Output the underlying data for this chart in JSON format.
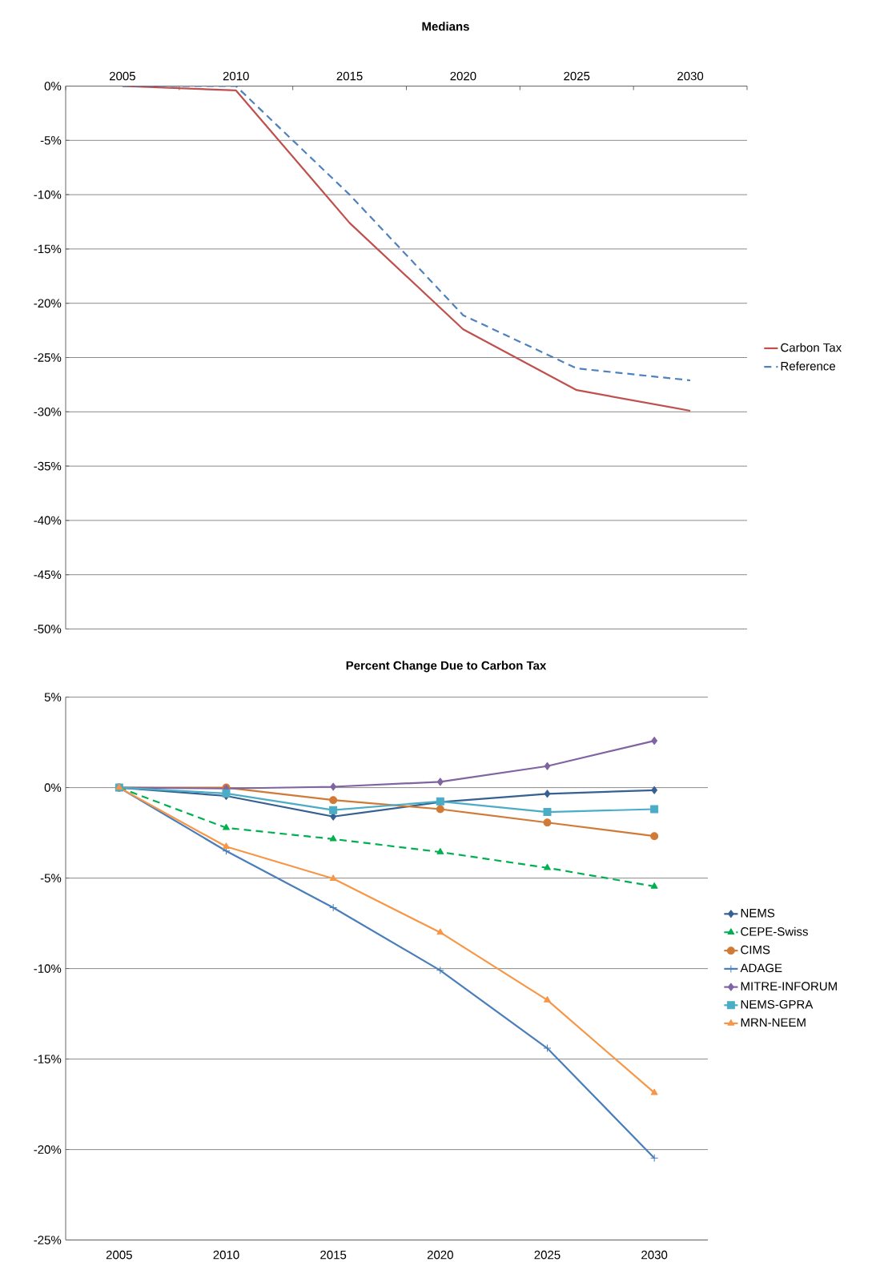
{
  "chart_data": [
    {
      "type": "line",
      "title": "Medians",
      "categories": [
        "2005",
        "2010",
        "2015",
        "2020",
        "2025",
        "2030"
      ],
      "series": [
        {
          "name": "Carbon Tax",
          "color": "#c0504d",
          "line_style": "solid",
          "values": [
            0,
            -0.4,
            -12.6,
            -22.4,
            -28.0,
            -29.9
          ]
        },
        {
          "name": "Reference",
          "color": "#4f81bd",
          "line_style": "dashed",
          "values": [
            0,
            0,
            -10.0,
            -21.1,
            -26.0,
            -27.1
          ]
        }
      ],
      "ylim": [
        -50,
        0
      ],
      "yticks": [
        {
          "value": 0,
          "label": "0%"
        },
        {
          "value": -5,
          "label": "-5%"
        },
        {
          "value": -10,
          "label": "-10%"
        },
        {
          "value": -15,
          "label": "-15%"
        },
        {
          "value": -20,
          "label": "-20%"
        },
        {
          "value": -25,
          "label": "-25%"
        },
        {
          "value": -30,
          "label": "-30%"
        },
        {
          "value": -35,
          "label": "-35%"
        },
        {
          "value": -40,
          "label": "-40%"
        },
        {
          "value": -45,
          "label": "-45%"
        },
        {
          "value": -50,
          "label": "-50%"
        }
      ],
      "grid": "y",
      "legend": "right",
      "marker": "none"
    },
    {
      "type": "line",
      "title": "Percent Change Due to Carbon Tax",
      "categories": [
        "2005",
        "2010",
        "2015",
        "2020",
        "2025",
        "2030"
      ],
      "series": [
        {
          "name": "NEMS",
          "color": "#366092",
          "marker": "diamond",
          "line_style": "solid",
          "values": [
            0,
            -0.46,
            -1.6,
            -0.8,
            -0.34,
            -0.14
          ]
        },
        {
          "name": "CEPE-Swiss",
          "color": "#00b050",
          "marker": "triangle",
          "line_style": "dashed",
          "values": [
            0,
            -2.22,
            -2.84,
            -3.56,
            -4.43,
            -5.46
          ]
        },
        {
          "name": "CIMS",
          "color": "#d07a36",
          "marker": "circle",
          "line_style": "solid",
          "values": [
            0,
            0,
            -0.69,
            -1.19,
            -1.93,
            -2.68
          ]
        },
        {
          "name": "ADAGE",
          "color": "#4a7ebb",
          "marker": "cross",
          "line_style": "solid",
          "values": [
            0,
            -3.5,
            -6.63,
            -10.1,
            -14.4,
            -20.47
          ]
        },
        {
          "name": "MITRE-INFORUM",
          "color": "#8064a2",
          "marker": "diamond",
          "line_style": "solid",
          "values": [
            0,
            -0.05,
            0.05,
            0.32,
            1.19,
            2.59
          ]
        },
        {
          "name": "NEMS-GPRA",
          "color": "#4bacc6",
          "marker": "square",
          "line_style": "solid",
          "values": [
            0,
            -0.32,
            -1.24,
            -0.76,
            -1.35,
            -1.19
          ]
        },
        {
          "name": "MRN-NEEM",
          "color": "#f79646",
          "marker": "triangle",
          "line_style": "solid",
          "values": [
            0,
            -3.26,
            -5.03,
            -8.0,
            -11.74,
            -16.86
          ]
        }
      ],
      "ylim": [
        -25,
        5
      ],
      "yticks": [
        {
          "value": 5,
          "label": "5%"
        },
        {
          "value": 0,
          "label": "0%"
        },
        {
          "value": -5,
          "label": "-5%"
        },
        {
          "value": -10,
          "label": "-10%"
        },
        {
          "value": -15,
          "label": "-15%"
        },
        {
          "value": -20,
          "label": "-20%"
        },
        {
          "value": -25,
          "label": "-25%"
        }
      ],
      "grid": "y",
      "legend": "right"
    }
  ]
}
